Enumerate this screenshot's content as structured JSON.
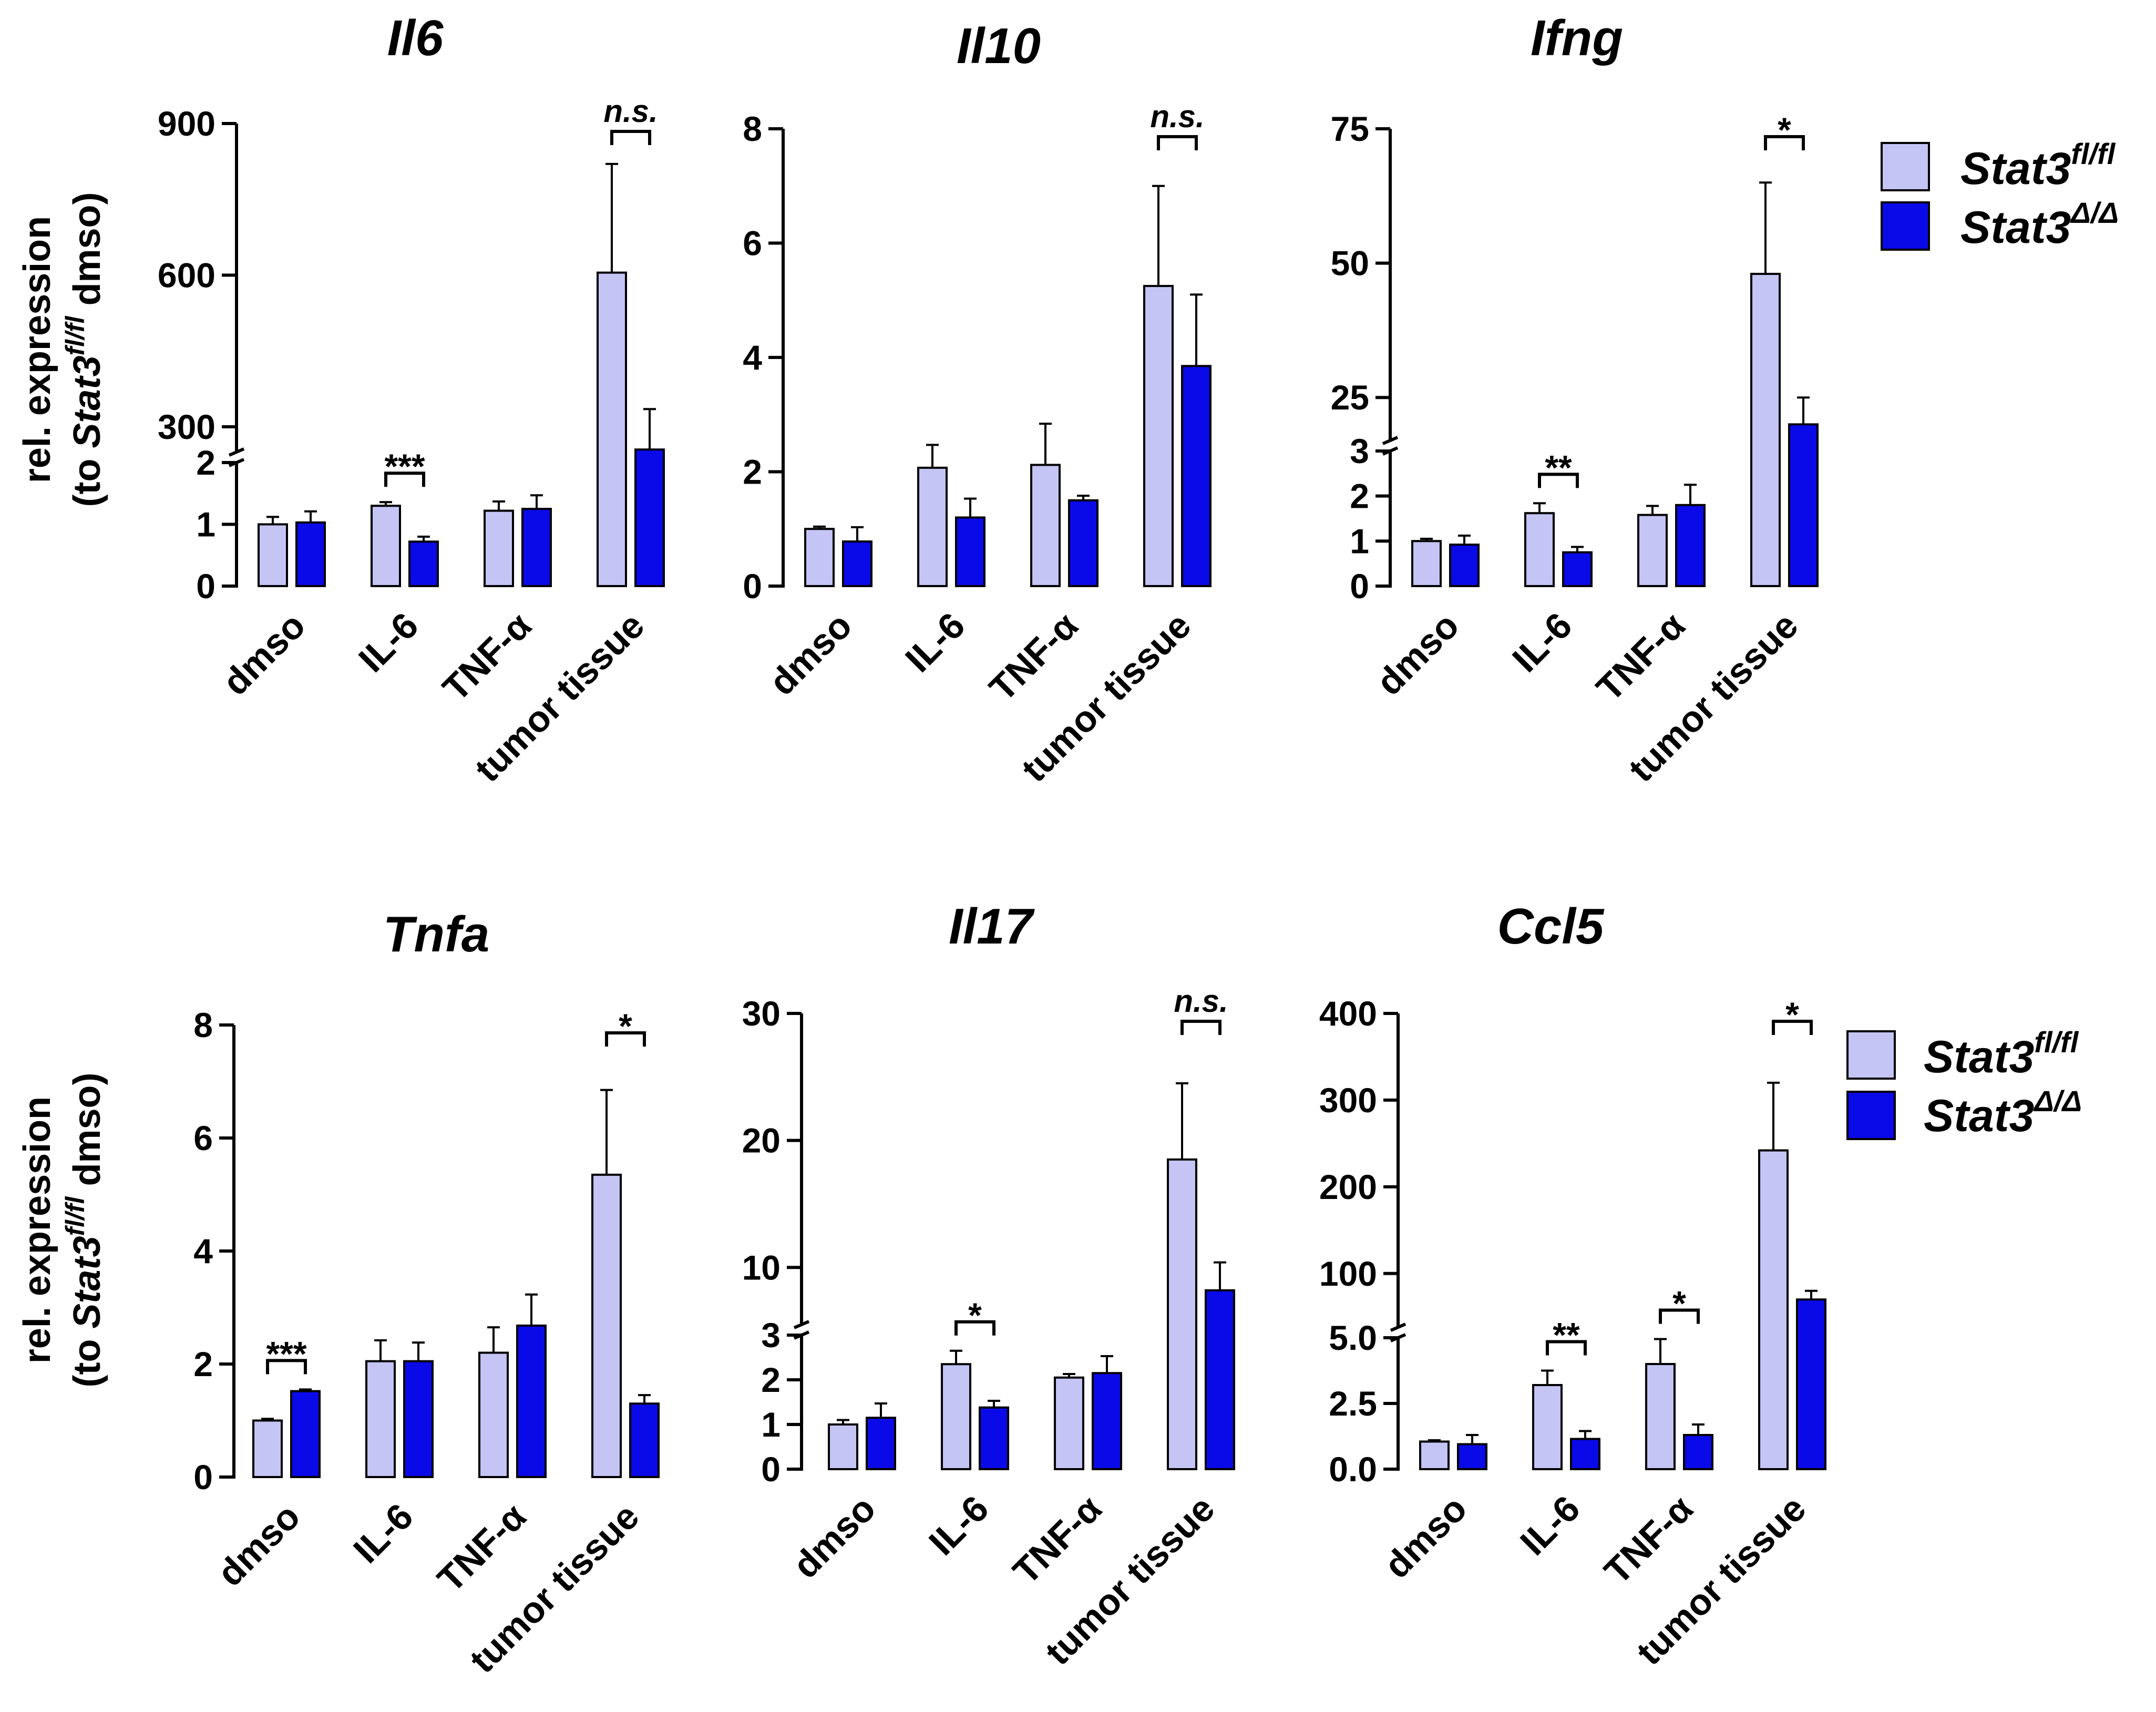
{
  "colors": {
    "fl": "#c4c4f5",
    "delta": "#0a0ae8",
    "axis": "#000000"
  },
  "legend": {
    "entries": [
      {
        "base": "Stat3",
        "sup": "fl/fl",
        "color": "#c4c4f5"
      },
      {
        "base": "Stat3",
        "sup": "Δ/Δ",
        "color": "#0a0ae8"
      }
    ]
  },
  "ylabel": {
    "line1": "rel. expression",
    "line2_pre": "(to ",
    "line2_gene": "Stat3",
    "line2_sup": "fl/fl",
    "line2_post": " dmso)"
  },
  "chart_data": [
    {
      "type": "bar",
      "title": "Il6",
      "categories": [
        "dmso",
        "IL-6",
        "TNF-α",
        "tumor tissue"
      ],
      "series": [
        {
          "name": "Stat3 fl/fl",
          "values": [
            1.0,
            1.3,
            1.22,
            605
          ],
          "errors": [
            0.12,
            0.06,
            0.15,
            215
          ]
        },
        {
          "name": "Stat3 Δ/Δ",
          "values": [
            1.03,
            0.72,
            1.25,
            255
          ],
          "errors": [
            0.18,
            0.08,
            0.22,
            80
          ]
        }
      ],
      "axis_segments": [
        {
          "ylim": [
            0,
            2
          ],
          "ticks": [
            {
              "v": 0,
              "label": "0"
            },
            {
              "v": 1,
              "label": "1"
            },
            {
              "v": 2,
              "label": "2"
            }
          ]
        },
        {
          "ylim": [
            250,
            900
          ],
          "ticks": [
            {
              "v": 300,
              "label": "300"
            },
            {
              "v": 600,
              "label": "600"
            },
            {
              "v": 900,
              "label": "900"
            }
          ]
        }
      ],
      "significance": [
        {
          "category": 1,
          "label": "***"
        },
        {
          "category": 3,
          "label": "n.s."
        }
      ]
    },
    {
      "type": "bar",
      "title": "Il10",
      "categories": [
        "dmso",
        "IL-6",
        "TNF-α",
        "tumor tissue"
      ],
      "series": [
        {
          "name": "Stat3 fl/fl",
          "values": [
            1.0,
            2.07,
            2.12,
            5.25
          ],
          "errors": [
            0.04,
            0.4,
            0.72,
            1.75
          ]
        },
        {
          "name": "Stat3 Δ/Δ",
          "values": [
            0.78,
            1.2,
            1.5,
            3.85
          ],
          "errors": [
            0.25,
            0.33,
            0.08,
            1.25
          ]
        }
      ],
      "axis_segments": [
        {
          "ylim": [
            0,
            8
          ],
          "ticks": [
            {
              "v": 0,
              "label": "0"
            },
            {
              "v": 2,
              "label": "2"
            },
            {
              "v": 4,
              "label": "4"
            },
            {
              "v": 6,
              "label": "6"
            },
            {
              "v": 8,
              "label": "8"
            }
          ]
        }
      ],
      "significance": [
        {
          "category": 3,
          "label": "n.s."
        }
      ]
    },
    {
      "type": "bar",
      "title": "Ifng",
      "categories": [
        "dmso",
        "IL-6",
        "TNF-α",
        "tumor tissue"
      ],
      "series": [
        {
          "name": "Stat3 fl/fl",
          "values": [
            1.0,
            1.62,
            1.58,
            48
          ],
          "errors": [
            0.05,
            0.22,
            0.2,
            17
          ]
        },
        {
          "name": "Stat3 Δ/Δ",
          "values": [
            0.92,
            0.75,
            1.8,
            20
          ],
          "errors": [
            0.2,
            0.12,
            0.45,
            5
          ]
        }
      ],
      "axis_segments": [
        {
          "ylim": [
            0,
            3
          ],
          "ticks": [
            {
              "v": 0,
              "label": "0"
            },
            {
              "v": 1,
              "label": "1"
            },
            {
              "v": 2,
              "label": "2"
            },
            {
              "v": 3,
              "label": "3"
            }
          ]
        },
        {
          "ylim": [
            17,
            75
          ],
          "ticks": [
            {
              "v": 25,
              "label": "25"
            },
            {
              "v": 50,
              "label": "50"
            },
            {
              "v": 75,
              "label": "75"
            }
          ]
        }
      ],
      "significance": [
        {
          "category": 1,
          "label": "**"
        },
        {
          "category": 3,
          "label": "*"
        }
      ]
    },
    {
      "type": "bar",
      "title": "Tnfa",
      "categories": [
        "dmso",
        "IL-6",
        "TNF-α",
        "tumor tissue"
      ],
      "series": [
        {
          "name": "Stat3 fl/fl",
          "values": [
            1.0,
            2.05,
            2.2,
            5.35
          ],
          "errors": [
            0.03,
            0.37,
            0.45,
            1.5
          ]
        },
        {
          "name": "Stat3 Δ/Δ",
          "values": [
            1.52,
            2.05,
            2.68,
            1.3
          ],
          "errors": [
            0.03,
            0.33,
            0.55,
            0.15
          ]
        }
      ],
      "axis_segments": [
        {
          "ylim": [
            0,
            8
          ],
          "ticks": [
            {
              "v": 0,
              "label": "0"
            },
            {
              "v": 2,
              "label": "2"
            },
            {
              "v": 4,
              "label": "4"
            },
            {
              "v": 6,
              "label": "6"
            },
            {
              "v": 8,
              "label": "8"
            }
          ]
        }
      ],
      "significance": [
        {
          "category": 0,
          "label": "***"
        },
        {
          "category": 3,
          "label": "*"
        }
      ]
    },
    {
      "type": "bar",
      "title": "Il17",
      "categories": [
        "dmso",
        "IL-6",
        "TNF-α",
        "tumor tissue"
      ],
      "series": [
        {
          "name": "Stat3 fl/fl",
          "values": [
            1.0,
            2.35,
            2.05,
            18.5
          ],
          "errors": [
            0.1,
            0.3,
            0.08,
            6
          ]
        },
        {
          "name": "Stat3 Δ/Δ",
          "values": [
            1.15,
            1.38,
            2.15,
            8.2
          ],
          "errors": [
            0.32,
            0.15,
            0.38,
            2.2
          ]
        }
      ],
      "axis_segments": [
        {
          "ylim": [
            0,
            3
          ],
          "ticks": [
            {
              "v": 0,
              "label": "0"
            },
            {
              "v": 1,
              "label": "1"
            },
            {
              "v": 2,
              "label": "2"
            },
            {
              "v": 3,
              "label": "3"
            }
          ]
        },
        {
          "ylim": [
            5.5,
            30
          ],
          "ticks": [
            {
              "v": 10,
              "label": "10"
            },
            {
              "v": 20,
              "label": "20"
            },
            {
              "v": 30,
              "label": "30"
            }
          ]
        }
      ],
      "significance": [
        {
          "category": 1,
          "label": "*"
        },
        {
          "category": 3,
          "label": "n.s."
        }
      ]
    },
    {
      "type": "bar",
      "title": "Ccl5",
      "categories": [
        "dmso",
        "IL-6",
        "TNF-α",
        "tumor tissue"
      ],
      "series": [
        {
          "name": "Stat3 fl/fl",
          "values": [
            1.05,
            3.2,
            4.0,
            242
          ],
          "errors": [
            0.05,
            0.55,
            0.95,
            78
          ]
        },
        {
          "name": "Stat3 Δ/Δ",
          "values": [
            0.95,
            1.15,
            1.3,
            70
          ],
          "errors": [
            0.35,
            0.3,
            0.4,
            10
          ]
        }
      ],
      "axis_segments": [
        {
          "ylim": [
            0,
            5
          ],
          "ticks": [
            {
              "v": 0,
              "label": "0.0"
            },
            {
              "v": 2.5,
              "label": "2.5"
            },
            {
              "v": 5,
              "label": "5.0"
            }
          ]
        },
        {
          "ylim": [
            38,
            400
          ],
          "ticks": [
            {
              "v": 100,
              "label": "100"
            },
            {
              "v": 200,
              "label": "200"
            },
            {
              "v": 300,
              "label": "300"
            },
            {
              "v": 400,
              "label": "400"
            }
          ]
        }
      ],
      "significance": [
        {
          "category": 1,
          "label": "**"
        },
        {
          "category": 2,
          "label": "*"
        },
        {
          "category": 3,
          "label": "*"
        }
      ]
    }
  ]
}
